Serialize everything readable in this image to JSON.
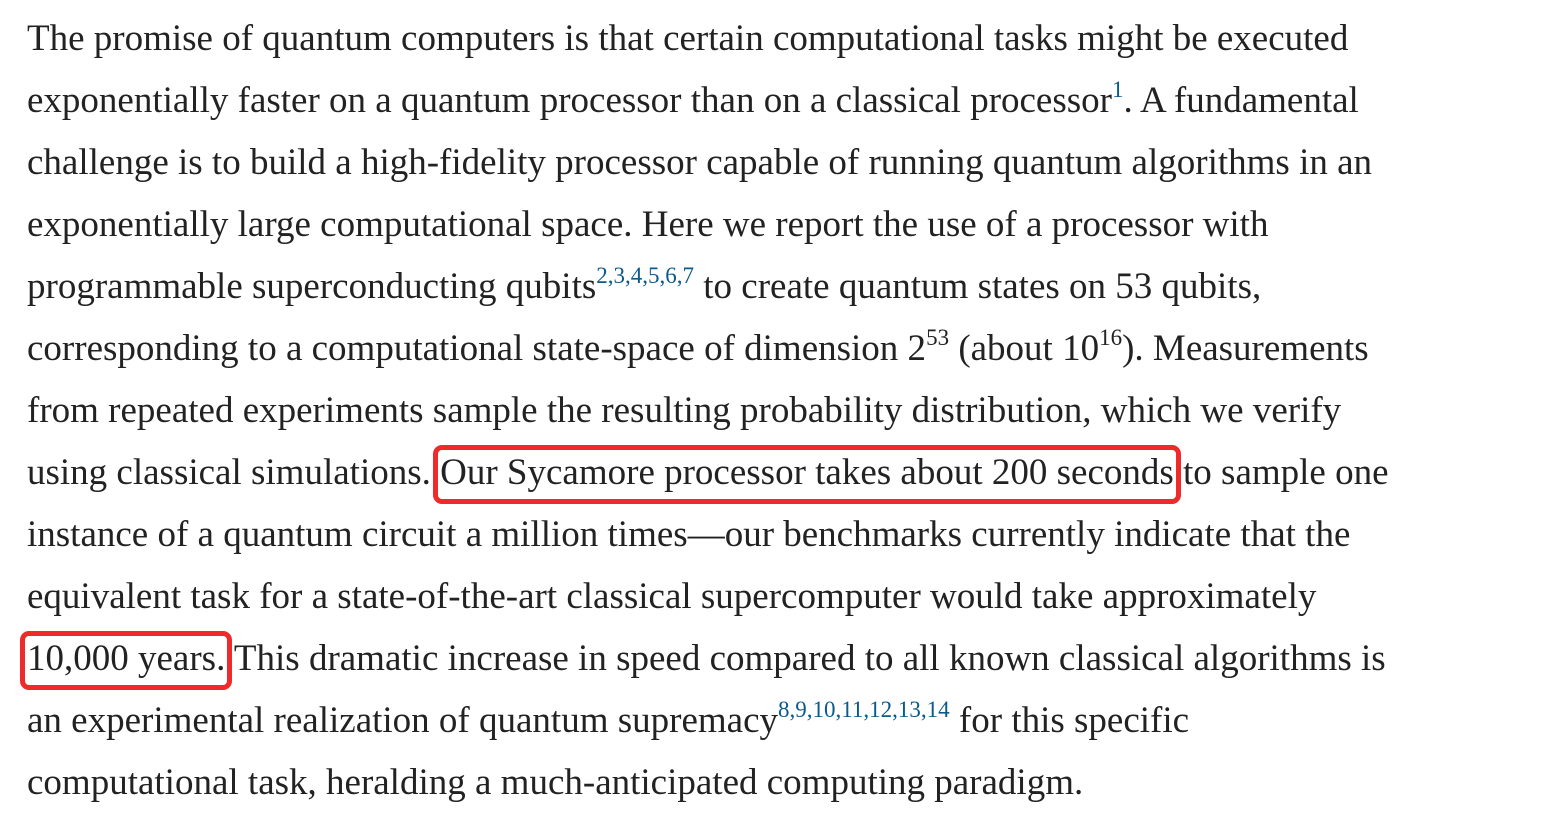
{
  "lines": [
    [
      {
        "text": "The promise of quantum computers is that certain computational tasks might be executed"
      }
    ],
    [
      {
        "text": "exponentially faster on a quantum processor than on a classical processor"
      },
      {
        "ref": "1"
      },
      {
        "text": ". A fundamental"
      }
    ],
    [
      {
        "text": "challenge is to build a high-fidelity processor capable of running quantum algorithms in an"
      }
    ],
    [
      {
        "text": "exponentially large computational space. Here we report the use of a processor with"
      }
    ],
    [
      {
        "text": "programmable superconducting qubits"
      },
      {
        "ref": "2,3,4,5,6,7"
      },
      {
        "text": " to create quantum states on 53 qubits,"
      }
    ],
    [
      {
        "text": "corresponding to a computational state-space of dimension 2"
      },
      {
        "sup": "53"
      },
      {
        "text": " (about 10"
      },
      {
        "sup": "16"
      },
      {
        "text": "). Measurements"
      }
    ],
    [
      {
        "text": "from repeated experiments sample the resulting probability distribution, which we verify"
      }
    ],
    [
      {
        "text": "using classical simulations. "
      },
      {
        "boxed": "Our Sycamore processor takes about 200 seconds"
      },
      {
        "text": " to sample one"
      }
    ],
    [
      {
        "text": "instance of a quantum circuit a million times—our benchmarks currently indicate that the"
      }
    ],
    [
      {
        "text": "equivalent task for a state-of-the-art classical supercomputer would take approximately"
      }
    ],
    [
      {
        "boxed": "10,000 years."
      },
      {
        "text": " This dramatic increase in speed compared to all known classical algorithms is"
      }
    ],
    [
      {
        "text": "an experimental realization of quantum supremacy"
      },
      {
        "ref": "8,9,10,11,12,13,14"
      },
      {
        "text": " for this specific"
      }
    ],
    [
      {
        "text": "computational task, heralding a much-anticipated computing paradigm."
      }
    ]
  ]
}
